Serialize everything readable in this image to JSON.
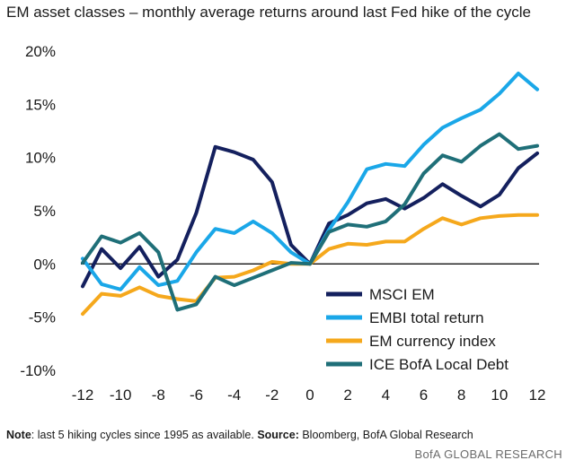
{
  "chart_data": {
    "type": "line",
    "title": "EM asset classes – monthly average returns around last Fed hike of the cycle",
    "xlabel": "",
    "ylabel": "",
    "x": [
      -12,
      -11,
      -10,
      -9,
      -8,
      -7,
      -6,
      -5,
      -4,
      -3,
      -2,
      -1,
      0,
      1,
      2,
      3,
      4,
      5,
      6,
      7,
      8,
      9,
      10,
      11,
      12
    ],
    "xlim": [
      -12.5,
      12.5
    ],
    "ylim": [
      -10,
      20
    ],
    "x_ticks": [
      -12,
      -10,
      -8,
      -6,
      -4,
      -2,
      0,
      2,
      4,
      6,
      8,
      10,
      12
    ],
    "x_tick_labels": [
      "-12",
      "-10",
      "-8",
      "-6",
      "-4",
      "-2",
      "0",
      "2",
      "4",
      "6",
      "8",
      "10",
      "12"
    ],
    "y_ticks": [
      20,
      15,
      10,
      5,
      0,
      -5,
      -10
    ],
    "y_tick_labels": [
      "20%",
      "15%",
      "10%",
      "5%",
      "0%",
      "-5%",
      "-10%"
    ],
    "legend_position": "bottom-right",
    "series": [
      {
        "name": "MSCI EM",
        "color": "#14205e",
        "values": [
          -2.1,
          1.4,
          -0.4,
          1.6,
          -1.2,
          0.4,
          4.8,
          11.0,
          10.5,
          9.8,
          7.7,
          1.8,
          0.0,
          3.8,
          4.6,
          5.7,
          6.1,
          5.2,
          6.2,
          7.5,
          6.4,
          5.4,
          6.5,
          9.0,
          10.4
        ]
      },
      {
        "name": "EMBI total return",
        "color": "#1aa7e8",
        "values": [
          0.5,
          -1.9,
          -2.4,
          -0.3,
          -2.0,
          -1.6,
          1.1,
          3.3,
          2.9,
          4.0,
          2.9,
          1.1,
          0.0,
          3.2,
          5.8,
          8.9,
          9.4,
          9.2,
          11.2,
          12.8,
          13.7,
          14.5,
          16.0,
          17.9,
          16.4
        ]
      },
      {
        "name": "EM currency index",
        "color": "#f5a81c",
        "values": [
          -4.7,
          -2.8,
          -3.0,
          -2.2,
          -3.0,
          -3.3,
          -3.5,
          -1.3,
          -1.2,
          -0.6,
          0.2,
          0.0,
          0.0,
          1.4,
          1.9,
          1.8,
          2.1,
          2.1,
          3.3,
          4.3,
          3.7,
          4.3,
          4.5,
          4.6,
          4.6
        ]
      },
      {
        "name": "ICE BofA Local Debt",
        "color": "#1f6f78",
        "values": [
          0.1,
          2.6,
          2.0,
          2.9,
          1.1,
          -4.3,
          -3.8,
          -1.2,
          -2.0,
          -1.3,
          -0.6,
          0.1,
          0.0,
          3.0,
          3.7,
          3.5,
          4.0,
          5.6,
          8.5,
          10.2,
          9.6,
          11.1,
          12.2,
          10.8,
          11.1
        ]
      }
    ]
  },
  "note": {
    "label": "Note",
    "text1": ": last 5 hiking cycles since  1995 as available. ",
    "source_label": "Source:",
    "text2": " Bloomberg, BofA Global Research"
  },
  "source_credit": "BofA GLOBAL RESEARCH"
}
